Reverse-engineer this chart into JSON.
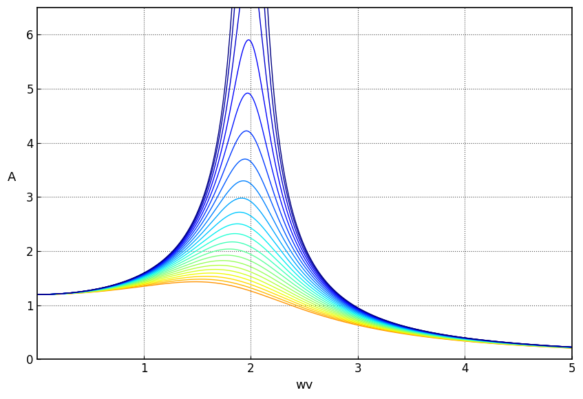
{
  "title": "",
  "xlabel": "wv",
  "ylabel": "A",
  "xlim": [
    0,
    5
  ],
  "ylim": [
    0,
    6.5
  ],
  "xticks": [
    1,
    2,
    3,
    4,
    5
  ],
  "yticks": [
    0,
    1,
    2,
    3,
    4,
    5,
    6
  ],
  "omega0": 2.0,
  "F0_actual": 4.8,
  "xmin": 0.01,
  "xmax": 5.0,
  "npoints": 2000,
  "damping_min": 0.08,
  "damping_max": 0.95,
  "n_curves": 22,
  "background_color": "#ffffff",
  "grid_color": "#000000",
  "grid_alpha": 0.7,
  "linewidth": 1.0,
  "figsize": [
    8.47,
    5.8
  ],
  "dpi": 100,
  "xlabel_fontsize": 13,
  "ylabel_fontsize": 13,
  "tick_fontsize": 12,
  "spine_color": "#000000",
  "cmap_start": 0.0,
  "cmap_end": 0.75
}
